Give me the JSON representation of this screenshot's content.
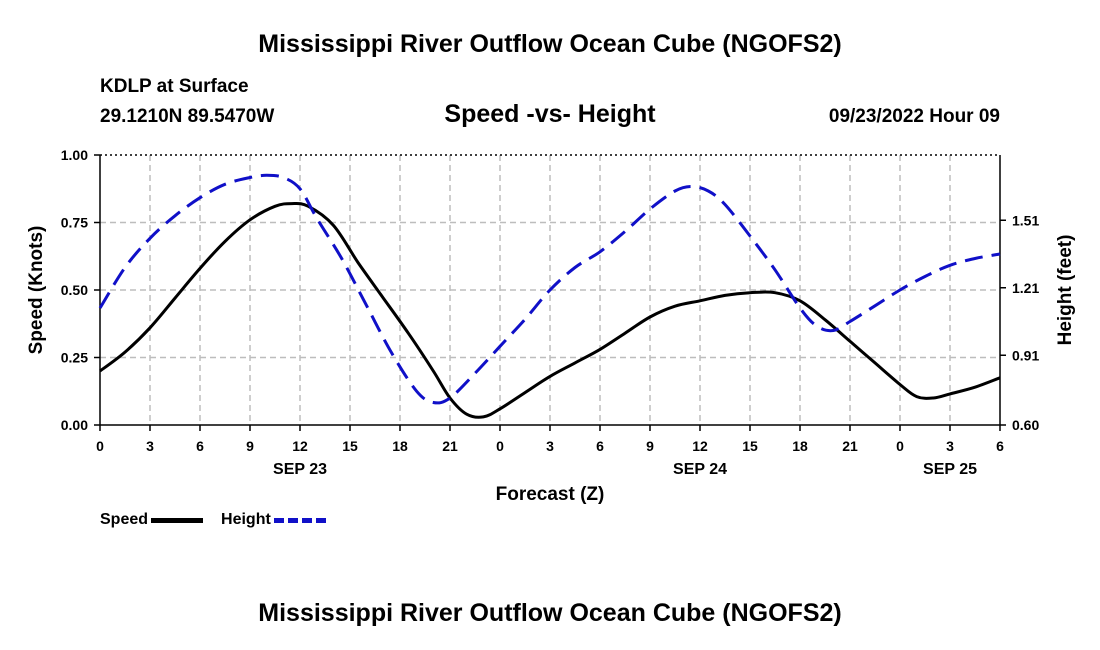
{
  "page": {
    "title": "Mississippi River Outflow Ocean Cube (NGOFS2)",
    "station": "KDLP at Surface",
    "coords": "29.1210N  89.5470W",
    "subtitle": "Speed -vs- Height",
    "datetime": "09/23/2022 Hour 09",
    "footer_title": "Mississippi River Outflow Ocean Cube (NGOFS2)"
  },
  "legend": {
    "speed_label": "Speed",
    "height_label": "Height"
  },
  "colors": {
    "speed": "#000000",
    "height": "#1010c8",
    "grid": "#bdbdbd"
  },
  "chart_data": {
    "type": "line",
    "xlabel": "Forecast (Z)",
    "x_unit": "hours from 09/23 00Z",
    "xlim": [
      0,
      54
    ],
    "x_tick_values": [
      0,
      3,
      6,
      9,
      12,
      15,
      18,
      21,
      24,
      27,
      30,
      33,
      36,
      39,
      42,
      45,
      48,
      51,
      54
    ],
    "x_tick_labels": [
      "0",
      "3",
      "6",
      "9",
      "12",
      "15",
      "18",
      "21",
      "0",
      "3",
      "6",
      "9",
      "12",
      "15",
      "18",
      "21",
      "0",
      "3",
      "6"
    ],
    "date_labels": [
      {
        "x": 12,
        "label": "SEP 23"
      },
      {
        "x": 36,
        "label": "SEP 24"
      },
      {
        "x": 51,
        "label": "SEP 25"
      }
    ],
    "y_left": {
      "label": "Speed (Knots)",
      "ylim": [
        0,
        1.0
      ],
      "tick_values": [
        0,
        0.25,
        0.5,
        0.75,
        1.0
      ],
      "tick_labels": [
        "0.00",
        "0.25",
        "0.50",
        "0.75",
        "1.00"
      ]
    },
    "y_right": {
      "label": "Height (feet)",
      "ylim": [
        0.6,
        1.8
      ],
      "tick_values": [
        0.6,
        0.91,
        1.21,
        1.51
      ],
      "tick_labels": [
        "0.60",
        "0.91",
        "1.21",
        "1.51"
      ]
    },
    "grid": true,
    "series": [
      {
        "name": "Speed",
        "axis": "left",
        "style": "solid",
        "x": [
          0,
          1.5,
          3,
          4.5,
          6,
          7.5,
          9,
          10.5,
          11.5,
          12.5,
          14,
          15.5,
          17,
          18.5,
          20,
          21,
          22,
          23,
          24,
          25.5,
          27,
          28.5,
          30,
          31.5,
          33,
          34.5,
          36,
          37.5,
          39,
          40.5,
          42,
          43.5,
          45,
          46.5,
          48,
          49,
          50,
          51,
          52.5,
          54
        ],
        "y": [
          0.2,
          0.27,
          0.36,
          0.47,
          0.58,
          0.68,
          0.76,
          0.81,
          0.82,
          0.81,
          0.74,
          0.6,
          0.47,
          0.34,
          0.2,
          0.1,
          0.04,
          0.03,
          0.06,
          0.12,
          0.18,
          0.23,
          0.28,
          0.34,
          0.4,
          0.44,
          0.46,
          0.48,
          0.49,
          0.49,
          0.46,
          0.39,
          0.31,
          0.23,
          0.15,
          0.105,
          0.1,
          0.115,
          0.14,
          0.175
        ]
      },
      {
        "name": "Height",
        "axis": "right",
        "style": "dashed",
        "x": [
          0,
          1.5,
          3,
          4.5,
          6,
          7.5,
          9,
          10,
          11,
          12,
          13,
          14.5,
          16,
          17.5,
          19,
          20,
          21,
          22.5,
          24,
          25.5,
          27,
          28.5,
          30,
          31.5,
          33,
          34.5,
          35.5,
          36.5,
          37.5,
          39,
          40.5,
          42,
          43,
          44,
          45,
          46.5,
          48,
          49.5,
          51,
          52.5,
          54
        ],
        "y": [
          1.12,
          1.3,
          1.43,
          1.53,
          1.61,
          1.67,
          1.7,
          1.71,
          1.7,
          1.65,
          1.52,
          1.34,
          1.13,
          0.92,
          0.75,
          0.7,
          0.72,
          0.83,
          0.95,
          1.07,
          1.2,
          1.3,
          1.37,
          1.46,
          1.56,
          1.64,
          1.66,
          1.64,
          1.58,
          1.44,
          1.29,
          1.12,
          1.04,
          1.02,
          1.06,
          1.13,
          1.2,
          1.26,
          1.31,
          1.34,
          1.36
        ]
      }
    ]
  }
}
